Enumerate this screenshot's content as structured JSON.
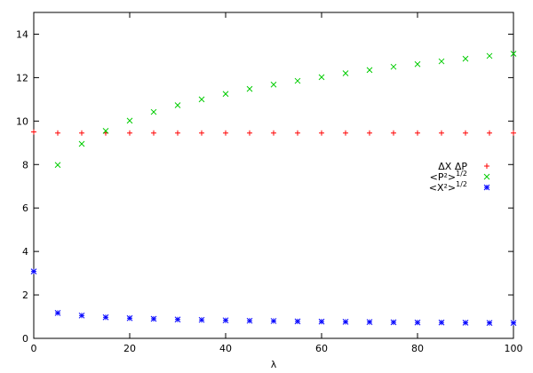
{
  "chart_data": {
    "type": "scatter",
    "title": "",
    "xlabel": "λ",
    "ylabel": "",
    "xlim": [
      0,
      100
    ],
    "ylim": [
      0,
      15
    ],
    "x_ticks": [
      0,
      20,
      40,
      60,
      80,
      100
    ],
    "y_ticks": [
      0,
      2,
      4,
      6,
      8,
      10,
      12,
      14
    ],
    "grid": false,
    "legend_position": "right-middle",
    "series": [
      {
        "name": "ΔX ΔP",
        "marker": "plus",
        "color": "#ff0000",
        "x": [
          0,
          5,
          10,
          15,
          20,
          25,
          30,
          35,
          40,
          45,
          50,
          55,
          60,
          65,
          70,
          75,
          80,
          85,
          90,
          95,
          100
        ],
        "y": [
          9.5,
          9.45,
          9.45,
          9.45,
          9.45,
          9.45,
          9.45,
          9.45,
          9.45,
          9.45,
          9.45,
          9.45,
          9.45,
          9.45,
          9.45,
          9.45,
          9.45,
          9.45,
          9.45,
          9.45,
          9.45
        ]
      },
      {
        "name": "<P²>^1/2",
        "marker": "cross",
        "color": "#00cc00",
        "x": [
          5,
          10,
          15,
          20,
          25,
          30,
          35,
          40,
          45,
          50,
          55,
          60,
          65,
          70,
          75,
          80,
          85,
          90,
          95,
          100
        ],
        "y": [
          7.98,
          8.95,
          9.55,
          10.02,
          10.42,
          10.73,
          11.0,
          11.25,
          11.48,
          11.68,
          11.85,
          12.02,
          12.2,
          12.35,
          12.5,
          12.62,
          12.75,
          12.87,
          13.0,
          13.1
        ]
      },
      {
        "name": "<X²>^1/2",
        "marker": "star",
        "color": "#0000ff",
        "x": [
          0,
          5,
          10,
          15,
          20,
          25,
          30,
          35,
          40,
          45,
          50,
          55,
          60,
          65,
          70,
          75,
          80,
          85,
          90,
          95,
          100
        ],
        "y": [
          3.08,
          1.17,
          1.05,
          0.97,
          0.93,
          0.9,
          0.87,
          0.85,
          0.83,
          0.81,
          0.8,
          0.78,
          0.77,
          0.76,
          0.75,
          0.74,
          0.73,
          0.73,
          0.72,
          0.71,
          0.71
        ]
      }
    ]
  }
}
